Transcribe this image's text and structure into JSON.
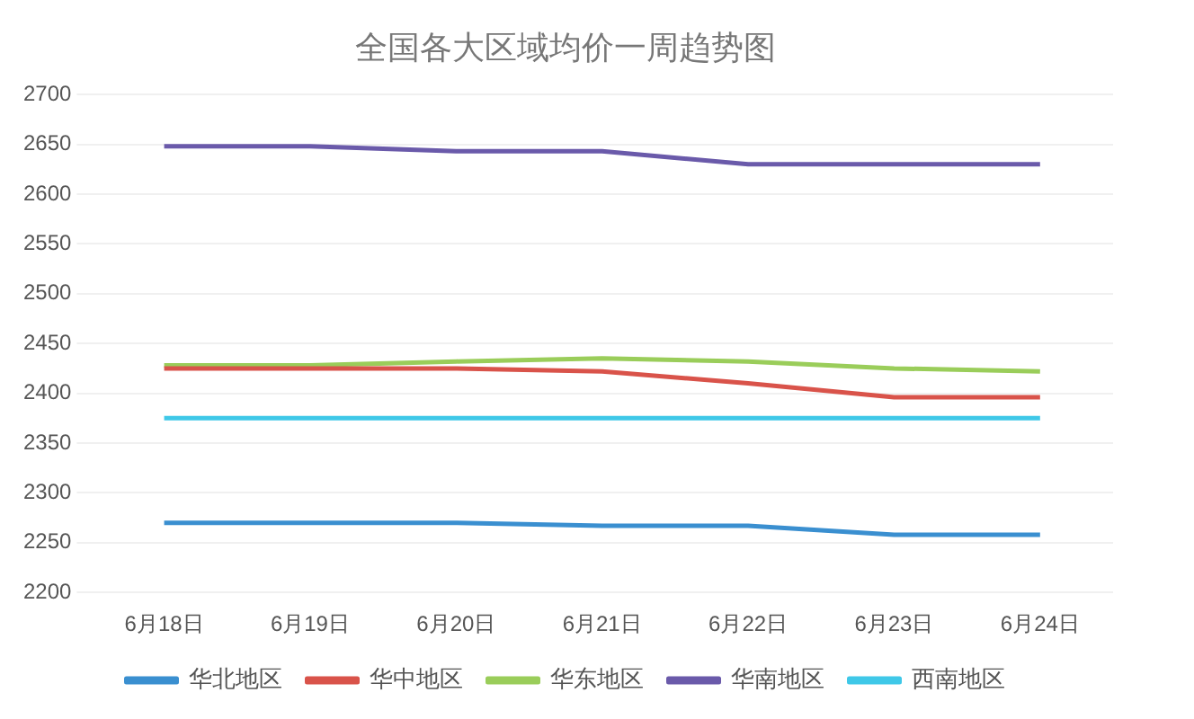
{
  "chart_data": {
    "type": "line",
    "title": "全国各大区域均价一周趋势图",
    "categories": [
      "6月18日",
      "6月19日",
      "6月20日",
      "6月21日",
      "6月22日",
      "6月23日",
      "6月24日"
    ],
    "series": [
      {
        "name": "华北地区",
        "color": "#3a8fd0",
        "values": [
          2270,
          2270,
          2270,
          2267,
          2267,
          2258,
          2258
        ]
      },
      {
        "name": "华中地区",
        "color": "#d9534a",
        "values": [
          2425,
          2425,
          2425,
          2422,
          2410,
          2396,
          2396
        ]
      },
      {
        "name": "华东地区",
        "color": "#9acd5a",
        "values": [
          2428,
          2428,
          2432,
          2435,
          2432,
          2425,
          2422
        ]
      },
      {
        "name": "华南地区",
        "color": "#6a5aaa",
        "values": [
          2648,
          2648,
          2643,
          2643,
          2630,
          2630,
          2630
        ]
      },
      {
        "name": "西南地区",
        "color": "#3fc8e8",
        "values": [
          2375,
          2375,
          2375,
          2375,
          2375,
          2375,
          2375
        ]
      }
    ],
    "ylim": [
      2200,
      2700
    ],
    "yticks": [
      2200,
      2250,
      2300,
      2350,
      2400,
      2450,
      2500,
      2550,
      2600,
      2650,
      2700
    ],
    "grid": "y",
    "legend": "bottom",
    "marker": "none",
    "line_style": "solid"
  }
}
